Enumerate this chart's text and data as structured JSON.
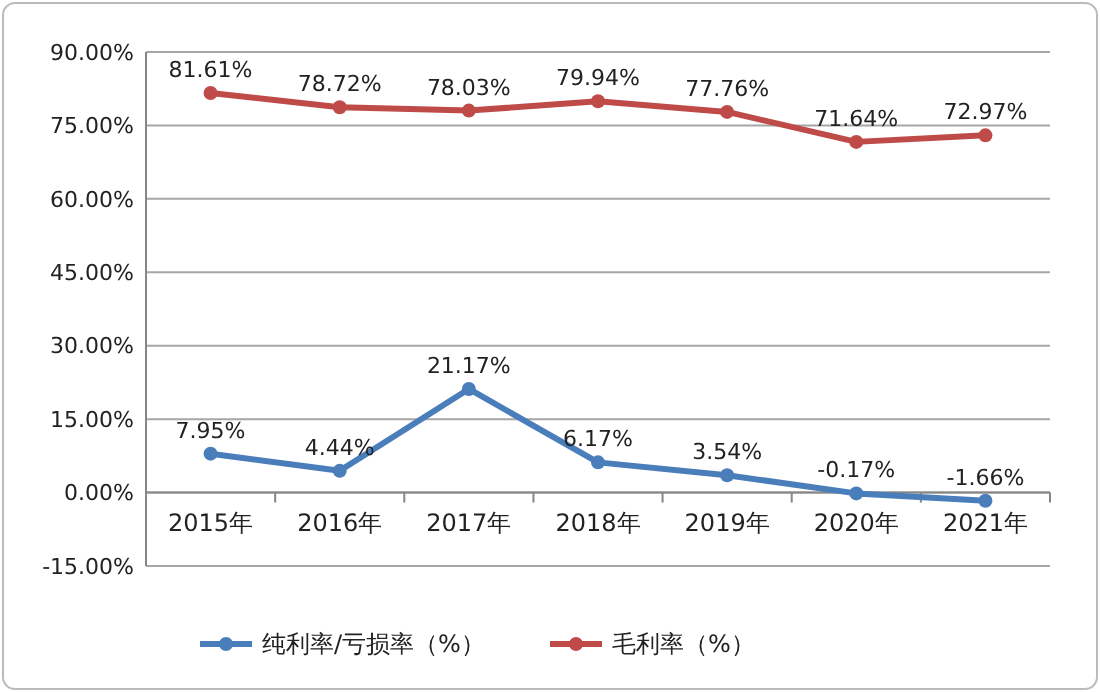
{
  "chart_data": {
    "type": "line",
    "categories": [
      "2015年",
      "2016年",
      "2017年",
      "2018年",
      "2019年",
      "2020年",
      "2021年"
    ],
    "series": [
      {
        "name": "纯利率/亏损率（%）",
        "color": "#4a7ebb",
        "values": [
          7.95,
          4.44,
          21.17,
          6.17,
          3.54,
          -0.17,
          -1.66
        ],
        "value_labels": [
          "7.95%",
          "4.44%",
          "21.17%",
          "6.17%",
          "3.54%",
          "-0.17%",
          "-1.66%"
        ]
      },
      {
        "name": "毛利率（%）",
        "color": "#be4b48",
        "values": [
          81.61,
          78.72,
          78.03,
          79.94,
          77.76,
          71.64,
          72.97
        ],
        "value_labels": [
          "81.61%",
          "78.72%",
          "78.03%",
          "79.94%",
          "77.76%",
          "71.64%",
          "72.97%"
        ]
      }
    ],
    "ylim": [
      -15,
      90
    ],
    "yticks": [
      {
        "value": -15,
        "label": "-15.00%"
      },
      {
        "value": 0,
        "label": "0.00%"
      },
      {
        "value": 15,
        "label": "15.00%"
      },
      {
        "value": 30,
        "label": "30.00%"
      },
      {
        "value": 45,
        "label": "45.00%"
      },
      {
        "value": 60,
        "label": "60.00%"
      },
      {
        "value": 75,
        "label": "75.00%"
      },
      {
        "value": 90,
        "label": "90.00%"
      }
    ],
    "grid": "y",
    "legend": "bottom",
    "marker": "circle",
    "line_style": "solid"
  }
}
